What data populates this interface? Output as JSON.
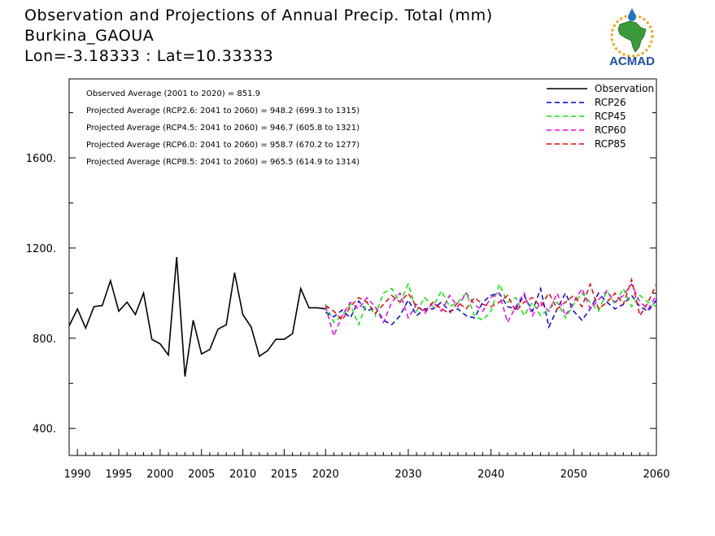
{
  "title": {
    "line1": "Observation and Projections of Annual Precip. Total (mm)",
    "line2": "Burkina_GAOUA",
    "line3": "Lon=-3.18333 : Lat=10.33333"
  },
  "logo": {
    "text": "ACMAD",
    "icon": "africa-map-logo-icon"
  },
  "annotations": [
    "Observed Average (2001 to 2020) = 851.9",
    "Projected Average (RCP2.6: 2041 to 2060) = 948.2 (699.3 to 1315)",
    "Projected Average (RCP4.5: 2041 to 2060) = 946.7 (605.8 to 1321)",
    "Projected Average (RCP6.0: 2041 to 2060) = 958.7 (670.2 to 1277)",
    "Projected Average (RCP8.5: 2041 to 2060) = 965.5 (614.9 to 1314)"
  ],
  "colors": {
    "Observation": "#000000",
    "RCP26": "#0000dd",
    "RCP45": "#00ee00",
    "RCP60": "#ee00ee",
    "RCP85": "#ee0000"
  },
  "chart_data": {
    "type": "line",
    "xlim": [
      1989,
      2060
    ],
    "ylim": [
      280,
      1950
    ],
    "x_ticks": [
      1990,
      1995,
      2000,
      2005,
      2010,
      2015,
      2020,
      2030,
      2040,
      2050,
      2060
    ],
    "y_ticks": [
      400,
      800,
      1200,
      1600
    ],
    "y_tick_labels": [
      "400.",
      "800.",
      "1200.",
      "1600."
    ],
    "legend": [
      "Observation",
      "RCP26",
      "RCP45",
      "RCP60",
      "RCP85"
    ],
    "legend_position": "top-right",
    "series": [
      {
        "name": "Observation",
        "style": "solid",
        "x": [
          1989,
          1990,
          1991,
          1992,
          1993,
          1994,
          1995,
          1996,
          1997,
          1998,
          1999,
          2000,
          2001,
          2002,
          2003,
          2004,
          2005,
          2006,
          2007,
          2008,
          2009,
          2010,
          2011,
          2012,
          2013,
          2014,
          2015,
          2016,
          2017,
          2018,
          2019,
          2020
        ],
        "values": [
          855,
          930,
          845,
          940,
          945,
          1055,
          920,
          960,
          905,
          1000,
          795,
          775,
          725,
          1160,
          630,
          880,
          730,
          750,
          840,
          860,
          1090,
          905,
          850,
          720,
          745,
          795,
          795,
          820,
          1020,
          935,
          935,
          930
        ]
      },
      {
        "name": "RCP26",
        "style": "dashed",
        "x": [
          2020,
          2021,
          2022,
          2023,
          2024,
          2025,
          2026,
          2027,
          2028,
          2029,
          2030,
          2031,
          2032,
          2033,
          2034,
          2035,
          2036,
          2037,
          2038,
          2039,
          2040,
          2041,
          2042,
          2043,
          2044,
          2045,
          2046,
          2047,
          2048,
          2049,
          2050,
          2051,
          2052,
          2053,
          2054,
          2055,
          2056,
          2057,
          2058,
          2059,
          2060
        ],
        "values": [
          915,
          895,
          925,
          890,
          965,
          920,
          940,
          880,
          860,
          900,
          970,
          900,
          930,
          930,
          960,
          920,
          930,
          900,
          890,
          960,
          990,
          1000,
          940,
          930,
          990,
          920,
          1020,
          850,
          930,
          1000,
          920,
          880,
          930,
          1000,
          960,
          930,
          950,
          990,
          940,
          920,
          970
        ]
      },
      {
        "name": "RCP45",
        "style": "dashed",
        "x": [
          2020,
          2021,
          2022,
          2023,
          2024,
          2025,
          2026,
          2027,
          2028,
          2029,
          2030,
          2031,
          2032,
          2033,
          2034,
          2035,
          2036,
          2037,
          2038,
          2039,
          2040,
          2041,
          2042,
          2043,
          2044,
          2045,
          2046,
          2047,
          2048,
          2049,
          2050,
          2051,
          2052,
          2053,
          2054,
          2055,
          2056,
          2057,
          2058,
          2059,
          2060
        ],
        "values": [
          950,
          870,
          900,
          950,
          860,
          960,
          900,
          1000,
          1020,
          960,
          1040,
          920,
          980,
          940,
          1010,
          940,
          960,
          1000,
          900,
          880,
          920,
          1040,
          960,
          980,
          900,
          960,
          900,
          930,
          960,
          890,
          950,
          1000,
          960,
          920,
          1010,
          950,
          1020,
          940,
          990,
          960,
          940
        ]
      },
      {
        "name": "RCP60",
        "style": "dashed",
        "x": [
          2020,
          2021,
          2022,
          2023,
          2024,
          2025,
          2026,
          2027,
          2028,
          2029,
          2030,
          2031,
          2032,
          2033,
          2034,
          2035,
          2036,
          2037,
          2038,
          2039,
          2040,
          2041,
          2042,
          2043,
          2044,
          2045,
          2046,
          2047,
          2048,
          2049,
          2050,
          2051,
          2052,
          2053,
          2054,
          2055,
          2056,
          2057,
          2058,
          2059,
          2060
        ],
        "values": [
          940,
          810,
          900,
          960,
          930,
          980,
          940,
          870,
          960,
          1000,
          890,
          950,
          910,
          960,
          920,
          990,
          940,
          1000,
          950,
          920,
          980,
          1000,
          870,
          940,
          1000,
          900,
          960,
          920,
          1000,
          900,
          960,
          1020,
          930,
          970,
          1010,
          960,
          990,
          1040,
          960,
          930,
          990
        ]
      },
      {
        "name": "RCP85",
        "style": "dashed",
        "x": [
          2020,
          2021,
          2022,
          2023,
          2024,
          2025,
          2026,
          2027,
          2028,
          2029,
          2030,
          2031,
          2032,
          2033,
          2034,
          2035,
          2036,
          2037,
          2038,
          2039,
          2040,
          2041,
          2042,
          2043,
          2044,
          2045,
          2046,
          2047,
          2048,
          2049,
          2050,
          2051,
          2052,
          2053,
          2054,
          2055,
          2056,
          2057,
          2058,
          2059,
          2060
        ],
        "values": [
          945,
          920,
          880,
          940,
          980,
          960,
          910,
          950,
          990,
          960,
          1000,
          940,
          920,
          960,
          930,
          910,
          960,
          930,
          980,
          950,
          940,
          960,
          990,
          920,
          960,
          980,
          940,
          1000,
          930,
          960,
          990,
          940,
          1040,
          930,
          960,
          1000,
          950,
          1060,
          900,
          960,
          1040
        ]
      }
    ]
  }
}
